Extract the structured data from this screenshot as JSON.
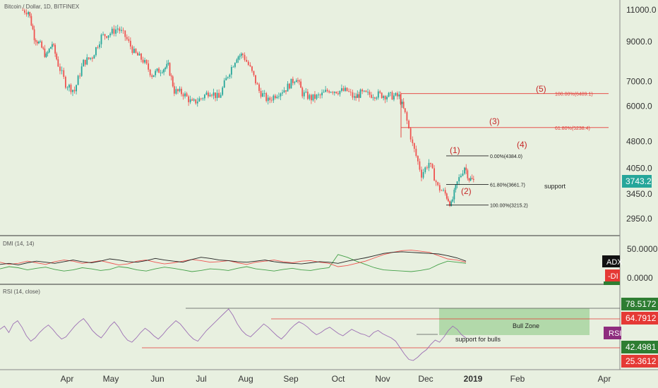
{
  "symbol": "Bitcoin / Dollar, 1D, BITFINEX",
  "colors": {
    "background": "#e8f0e0",
    "bull": "#26a69a",
    "bear": "#ef5350",
    "fib": "#e53935",
    "wave": "#c62828",
    "rsi": "#9c6fb4",
    "adx": "#222222",
    "plus_di": "#43a047",
    "minus_di": "#ef5350",
    "bull_zone": "#a8d5a0",
    "price_badge": "#26a69a"
  },
  "price_axis": {
    "scale": "log",
    "ticks": [
      "11000.0",
      "9000.0",
      "7000.0",
      "6000.0",
      "4800.0",
      "4050.0",
      "3450.0",
      "2950.0"
    ],
    "current_price": "3743.2"
  },
  "time_axis": {
    "labels": [
      "Apr",
      "May",
      "Jun",
      "Jul",
      "Aug",
      "Sep",
      "Oct",
      "Nov",
      "Dec",
      "2019",
      "Feb",
      "Apr"
    ]
  },
  "chart_data": {
    "type": "candlestick",
    "title": "Bitcoin / Dollar, 1D, BITFINEX",
    "y_scale": "log",
    "ylim": [
      2700,
      12500
    ],
    "price_path": [
      [
        "2018-03-01",
        11000
      ],
      [
        "2018-03-06",
        10900
      ],
      [
        "2018-03-10",
        9300
      ],
      [
        "2018-03-14",
        8800
      ],
      [
        "2018-03-18",
        8200
      ],
      [
        "2018-03-22",
        8900
      ],
      [
        "2018-03-26",
        7800
      ],
      [
        "2018-03-31",
        6900
      ],
      [
        "2018-04-06",
        6600
      ],
      [
        "2018-04-12",
        7900
      ],
      [
        "2018-04-18",
        8200
      ],
      [
        "2018-04-24",
        9300
      ],
      [
        "2018-04-30",
        9500
      ],
      [
        "2018-05-05",
        9800
      ],
      [
        "2018-05-10",
        9300
      ],
      [
        "2018-05-16",
        8400
      ],
      [
        "2018-05-22",
        8000
      ],
      [
        "2018-05-28",
        7300
      ],
      [
        "2018-06-04",
        7600
      ],
      [
        "2018-06-08",
        7700
      ],
      [
        "2018-06-12",
        6600
      ],
      [
        "2018-06-18",
        6500
      ],
      [
        "2018-06-24",
        6100
      ],
      [
        "2018-06-30",
        6300
      ],
      [
        "2018-07-06",
        6600
      ],
      [
        "2018-07-12",
        6300
      ],
      [
        "2018-07-18",
        7300
      ],
      [
        "2018-07-24",
        8200
      ],
      [
        "2018-07-28",
        8300
      ],
      [
        "2018-08-02",
        7600
      ],
      [
        "2018-08-08",
        6600
      ],
      [
        "2018-08-14",
        6200
      ],
      [
        "2018-08-20",
        6500
      ],
      [
        "2018-08-26",
        6700
      ],
      [
        "2018-09-02",
        7200
      ],
      [
        "2018-09-06",
        6500
      ],
      [
        "2018-09-12",
        6300
      ],
      [
        "2018-09-18",
        6400
      ],
      [
        "2018-09-24",
        6650
      ],
      [
        "2018-09-30",
        6600
      ],
      [
        "2018-10-06",
        6600
      ],
      [
        "2018-10-11",
        6300
      ],
      [
        "2018-10-15",
        6500
      ],
      [
        "2018-10-20",
        6450
      ],
      [
        "2018-10-27",
        6450
      ],
      [
        "2018-11-03",
        6400
      ],
      [
        "2018-11-10",
        6370
      ],
      [
        "2018-11-14",
        5700
      ],
      [
        "2018-11-19",
        4700
      ],
      [
        "2018-11-25",
        3900
      ],
      [
        "2018-11-30",
        4200
      ],
      [
        "2018-12-06",
        3600
      ],
      [
        "2018-12-11",
        3450
      ],
      [
        "2018-12-15",
        3215
      ],
      [
        "2018-12-19",
        3700
      ],
      [
        "2018-12-24",
        4100
      ],
      [
        "2018-12-27",
        3800
      ],
      [
        "2018-12-30",
        3743
      ]
    ],
    "fib_levels": [
      {
        "label": "100.00%(6489.1)",
        "value": 6489.1
      },
      {
        "label": "61.80%(5238.4)",
        "value": 5238.4
      },
      {
        "label": "0.00%(4384.0)",
        "value": 4384.0
      },
      {
        "label": "61.80%(3661.7)",
        "value": 3661.7
      },
      {
        "label": "100.00%(3215.2)",
        "value": 3215.2
      }
    ],
    "wave_labels": [
      "(1)",
      "(2)",
      "(3)",
      "(4)",
      "(5)"
    ],
    "annotations": [
      "support"
    ]
  },
  "dmi": {
    "title": "DMI (14, 14)",
    "ticks": [
      "50.0000",
      "0.0000"
    ],
    "badges": {
      "adx": "ADX",
      "minus_di": "-DI"
    },
    "series_adx": [
      22,
      24,
      21,
      25,
      28,
      26,
      24,
      27,
      30,
      27,
      25,
      28,
      32,
      30,
      27,
      26,
      29,
      33,
      30,
      28,
      26,
      31,
      35,
      33,
      30,
      29,
      27,
      26,
      28,
      30,
      27,
      25,
      24,
      23,
      25,
      27,
      26,
      24,
      28,
      31,
      34,
      38,
      42,
      44,
      45,
      44,
      43,
      42,
      41,
      38,
      34,
      28
    ],
    "series_plus_di": [
      14,
      18,
      16,
      12,
      15,
      17,
      13,
      10,
      12,
      16,
      14,
      11,
      13,
      18,
      16,
      12,
      10,
      14,
      17,
      15,
      12,
      9,
      11,
      14,
      13,
      11,
      15,
      18,
      14,
      12,
      10,
      13,
      15,
      12,
      11,
      14,
      16,
      40,
      35,
      28,
      22,
      16,
      12,
      11,
      10,
      9,
      11,
      14,
      22,
      28,
      26,
      24
    ],
    "series_minus_di": [
      26,
      22,
      24,
      28,
      25,
      22,
      27,
      30,
      28,
      24,
      26,
      29,
      25,
      21,
      23,
      28,
      30,
      26,
      23,
      25,
      28,
      31,
      29,
      26,
      27,
      29,
      25,
      22,
      26,
      28,
      30,
      27,
      25,
      28,
      29,
      26,
      24,
      18,
      20,
      24,
      28,
      34,
      40,
      44,
      47,
      48,
      46,
      44,
      38,
      32,
      30,
      26
    ]
  },
  "rsi": {
    "title": "RSI (14, close)",
    "ticks": [
      "78.5172",
      "64.7912",
      "42.4981",
      "25.3612"
    ],
    "badge": "RSI",
    "bull_zone_label": "Bull Zone",
    "support_label": "support for bulls",
    "series": [
      55,
      58,
      52,
      60,
      63,
      57,
      49,
      44,
      47,
      52,
      56,
      59,
      55,
      50,
      46,
      48,
      53,
      58,
      62,
      65,
      60,
      54,
      50,
      47,
      52,
      58,
      62,
      57,
      50,
      45,
      43,
      47,
      52,
      56,
      53,
      49,
      46,
      50,
      55,
      59,
      63,
      60,
      55,
      50,
      46,
      44,
      49,
      54,
      58,
      62,
      66,
      70,
      74,
      68,
      60,
      54,
      50,
      48,
      52,
      56,
      60,
      57,
      53,
      49,
      46,
      50,
      55,
      59,
      62,
      60,
      57,
      53,
      50,
      52,
      55,
      57,
      54,
      51,
      49,
      52,
      55,
      53,
      51,
      50,
      48,
      52,
      54,
      51,
      49,
      47,
      44,
      38,
      32,
      27,
      26,
      29,
      33,
      36,
      41,
      45,
      43,
      48,
      54,
      58,
      55,
      50,
      47
    ]
  }
}
